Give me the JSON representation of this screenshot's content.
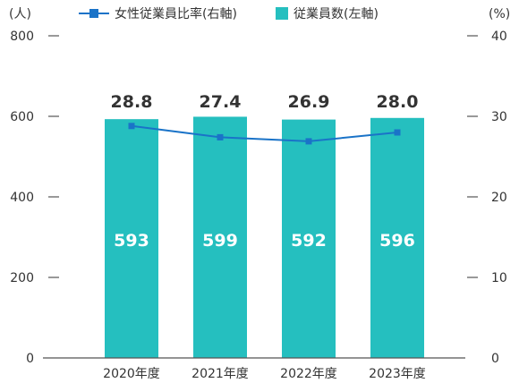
{
  "legend": {
    "line_label": "女性従業員比率(右軸)",
    "bar_label": "従業員数(左軸)"
  },
  "chart_data": {
    "type": "bar",
    "categories": [
      "2020年度",
      "2021年度",
      "2022年度",
      "2023年度"
    ],
    "series": [
      {
        "name": "従業員数(左軸)",
        "type": "bar",
        "axis": "left",
        "values": [
          593,
          599,
          592,
          596
        ]
      },
      {
        "name": "女性従業員比率(右軸)",
        "type": "line",
        "axis": "right",
        "values": [
          28.8,
          27.4,
          26.9,
          28.0
        ]
      }
    ],
    "y_left": {
      "unit": "(人)",
      "range": [
        0,
        800
      ],
      "ticks": [
        0,
        200,
        400,
        600,
        800
      ]
    },
    "y_right": {
      "unit": "(%)",
      "range": [
        0,
        40
      ],
      "ticks": [
        0,
        10,
        20,
        30,
        40
      ]
    },
    "line_label_values": [
      "28.8",
      "27.4",
      "26.9",
      "28.0"
    ],
    "grid": false,
    "legend_position": "top",
    "colors": {
      "bar": "#25BFBF",
      "line": "#1A73C8",
      "marker": "#1A73C8",
      "axis": "#555555"
    }
  }
}
